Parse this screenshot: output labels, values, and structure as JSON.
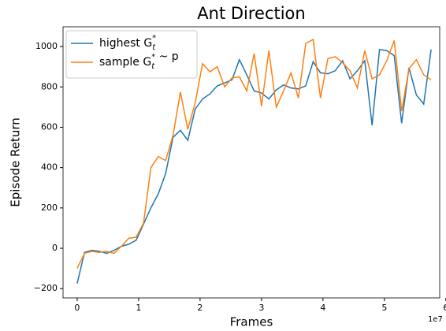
{
  "chart_data": {
    "type": "line",
    "title": "Ant Direction",
    "xlabel": "Frames",
    "ylabel": "Episode Return",
    "x_offset_label": "1e7",
    "x": [
      0,
      0.12,
      0.24,
      0.36,
      0.48,
      0.6,
      0.72,
      0.84,
      0.96,
      1.08,
      1.2,
      1.32,
      1.44,
      1.56,
      1.68,
      1.8,
      1.92,
      2.04,
      2.16,
      2.28,
      2.4,
      2.52,
      2.64,
      2.76,
      2.88,
      3.0,
      3.12,
      3.24,
      3.36,
      3.48,
      3.6,
      3.72,
      3.84,
      3.96,
      4.08,
      4.2,
      4.32,
      4.44,
      4.56,
      4.68,
      4.8,
      4.92,
      5.04,
      5.16,
      5.28,
      5.4,
      5.52,
      5.64,
      5.76
    ],
    "series": [
      {
        "name": "highest G_t^*",
        "color": "#1f77b4",
        "values": [
          -175,
          -20,
          -10,
          -15,
          -25,
          -10,
          10,
          20,
          40,
          120,
          200,
          270,
          370,
          550,
          585,
          535,
          690,
          740,
          765,
          805,
          820,
          835,
          935,
          860,
          780,
          770,
          740,
          785,
          810,
          795,
          790,
          805,
          925,
          870,
          865,
          880,
          930,
          840,
          880,
          930,
          610,
          985,
          980,
          955,
          620,
          895,
          760,
          715,
          985
        ]
      },
      {
        "name": "sample G_t^* ~ p",
        "color": "#ff7f0e",
        "values": [
          -100,
          -25,
          -15,
          -20,
          -15,
          -25,
          10,
          50,
          55,
          125,
          400,
          455,
          435,
          560,
          775,
          590,
          720,
          915,
          875,
          900,
          800,
          845,
          850,
          780,
          965,
          705,
          980,
          700,
          780,
          870,
          745,
          1015,
          1035,
          745,
          940,
          950,
          920,
          880,
          795,
          980,
          840,
          860,
          930,
          1030,
          680,
          890,
          935,
          860,
          835
        ]
      }
    ],
    "xlim": [
      -0.23,
      5.9
    ],
    "xticks": [
      0,
      1,
      2,
      3,
      4,
      5,
      6
    ],
    "ylim": [
      -246,
      1098
    ],
    "yticks": [
      {
        "value": -200,
        "label": "−200"
      },
      0,
      200,
      400,
      600,
      800,
      1000
    ],
    "legend": "upper left"
  }
}
